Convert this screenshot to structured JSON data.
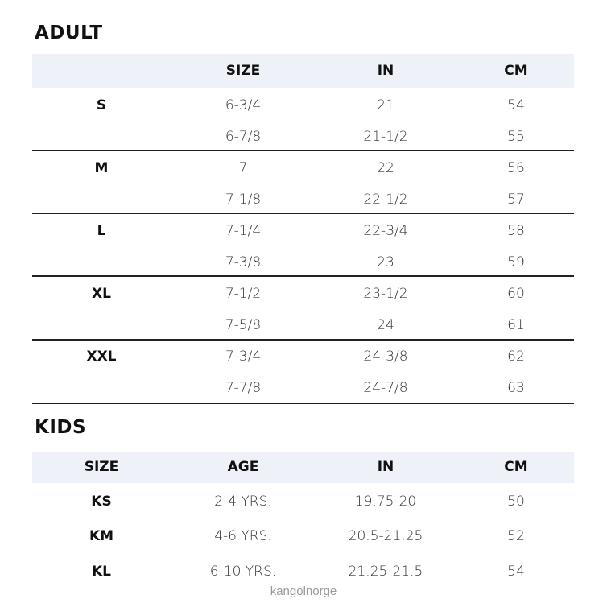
{
  "adult": {
    "title": "ADULT",
    "headers": [
      "",
      "SIZE",
      "IN",
      "CM"
    ],
    "rows": [
      [
        "S",
        "6-3/4",
        "21",
        "54"
      ],
      [
        "",
        "6-7/8",
        "21-1/2",
        "55"
      ],
      [
        "M",
        "7",
        "22",
        "56"
      ],
      [
        "",
        "7-1/8",
        "22-1/2",
        "57"
      ],
      [
        "L",
        "7-1/4",
        "22-3/4",
        "58"
      ],
      [
        "",
        "7-3/8",
        "23",
        "59"
      ],
      [
        "XL",
        "7-1/2",
        "23-1/2",
        "60"
      ],
      [
        "",
        "7-5/8",
        "24",
        "61"
      ],
      [
        "XXL",
        "7-3/4",
        "24-3/8",
        "62"
      ],
      [
        "",
        "7-7/8",
        "24-7/8",
        "63"
      ]
    ]
  },
  "kids": {
    "title": "KIDS",
    "headers": [
      "SIZE",
      "AGE",
      "IN",
      "CM"
    ],
    "rows": [
      [
        "KS",
        "2-4 YRS.",
        "19.75-20",
        "50"
      ],
      [
        "KM",
        "4-6 YRS.",
        "20.5-21.25",
        "52"
      ],
      [
        "KL",
        "6-10 YRS.",
        "21.25-21.5",
        "54"
      ]
    ]
  },
  "colors": {
    "header_band": "#eef2f8",
    "rule": "#222222"
  },
  "watermark": "kangolnorge"
}
